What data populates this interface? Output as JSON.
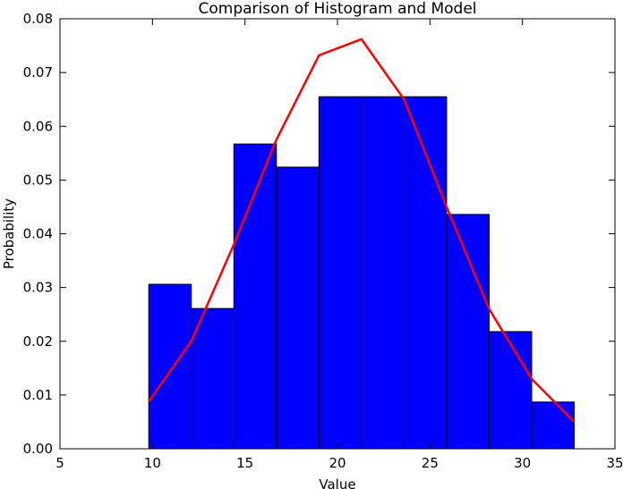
{
  "chart_data": {
    "type": "bar",
    "title": "Comparison of Histogram and Model",
    "xlabel": "Value",
    "ylabel": "Probability",
    "xlim": [
      5,
      35
    ],
    "ylim": [
      0,
      0.08
    ],
    "xticks": [
      5,
      10,
      15,
      20,
      25,
      30,
      35
    ],
    "yticks": [
      0.0,
      0.01,
      0.02,
      0.03,
      0.04,
      0.05,
      0.06,
      0.07,
      0.08
    ],
    "xtick_labels": [
      "5",
      "10",
      "15",
      "20",
      "25",
      "30",
      "35"
    ],
    "ytick_labels": [
      "0.00",
      "0.01",
      "0.02",
      "0.03",
      "0.04",
      "0.05",
      "0.06",
      "0.07",
      "0.08"
    ],
    "grid": false,
    "series": [
      {
        "type": "histogram",
        "color": "#0000ff",
        "bin_edges": [
          9.8,
          12.1,
          14.4,
          16.7,
          19.0,
          21.3,
          23.6,
          25.9,
          28.2,
          30.5,
          32.8
        ],
        "values": [
          0.0306,
          0.0261,
          0.0567,
          0.0524,
          0.0655,
          0.0655,
          0.0655,
          0.0436,
          0.0218,
          0.0087
        ]
      },
      {
        "type": "line",
        "color": "#ff0000",
        "x": [
          9.8,
          12.1,
          14.4,
          16.7,
          19.0,
          21.3,
          23.6,
          25.9,
          28.2,
          30.5,
          32.8
        ],
        "y": [
          0.0088,
          0.02,
          0.038,
          0.0575,
          0.0732,
          0.0762,
          0.065,
          0.045,
          0.026,
          0.013,
          0.005
        ]
      }
    ]
  }
}
